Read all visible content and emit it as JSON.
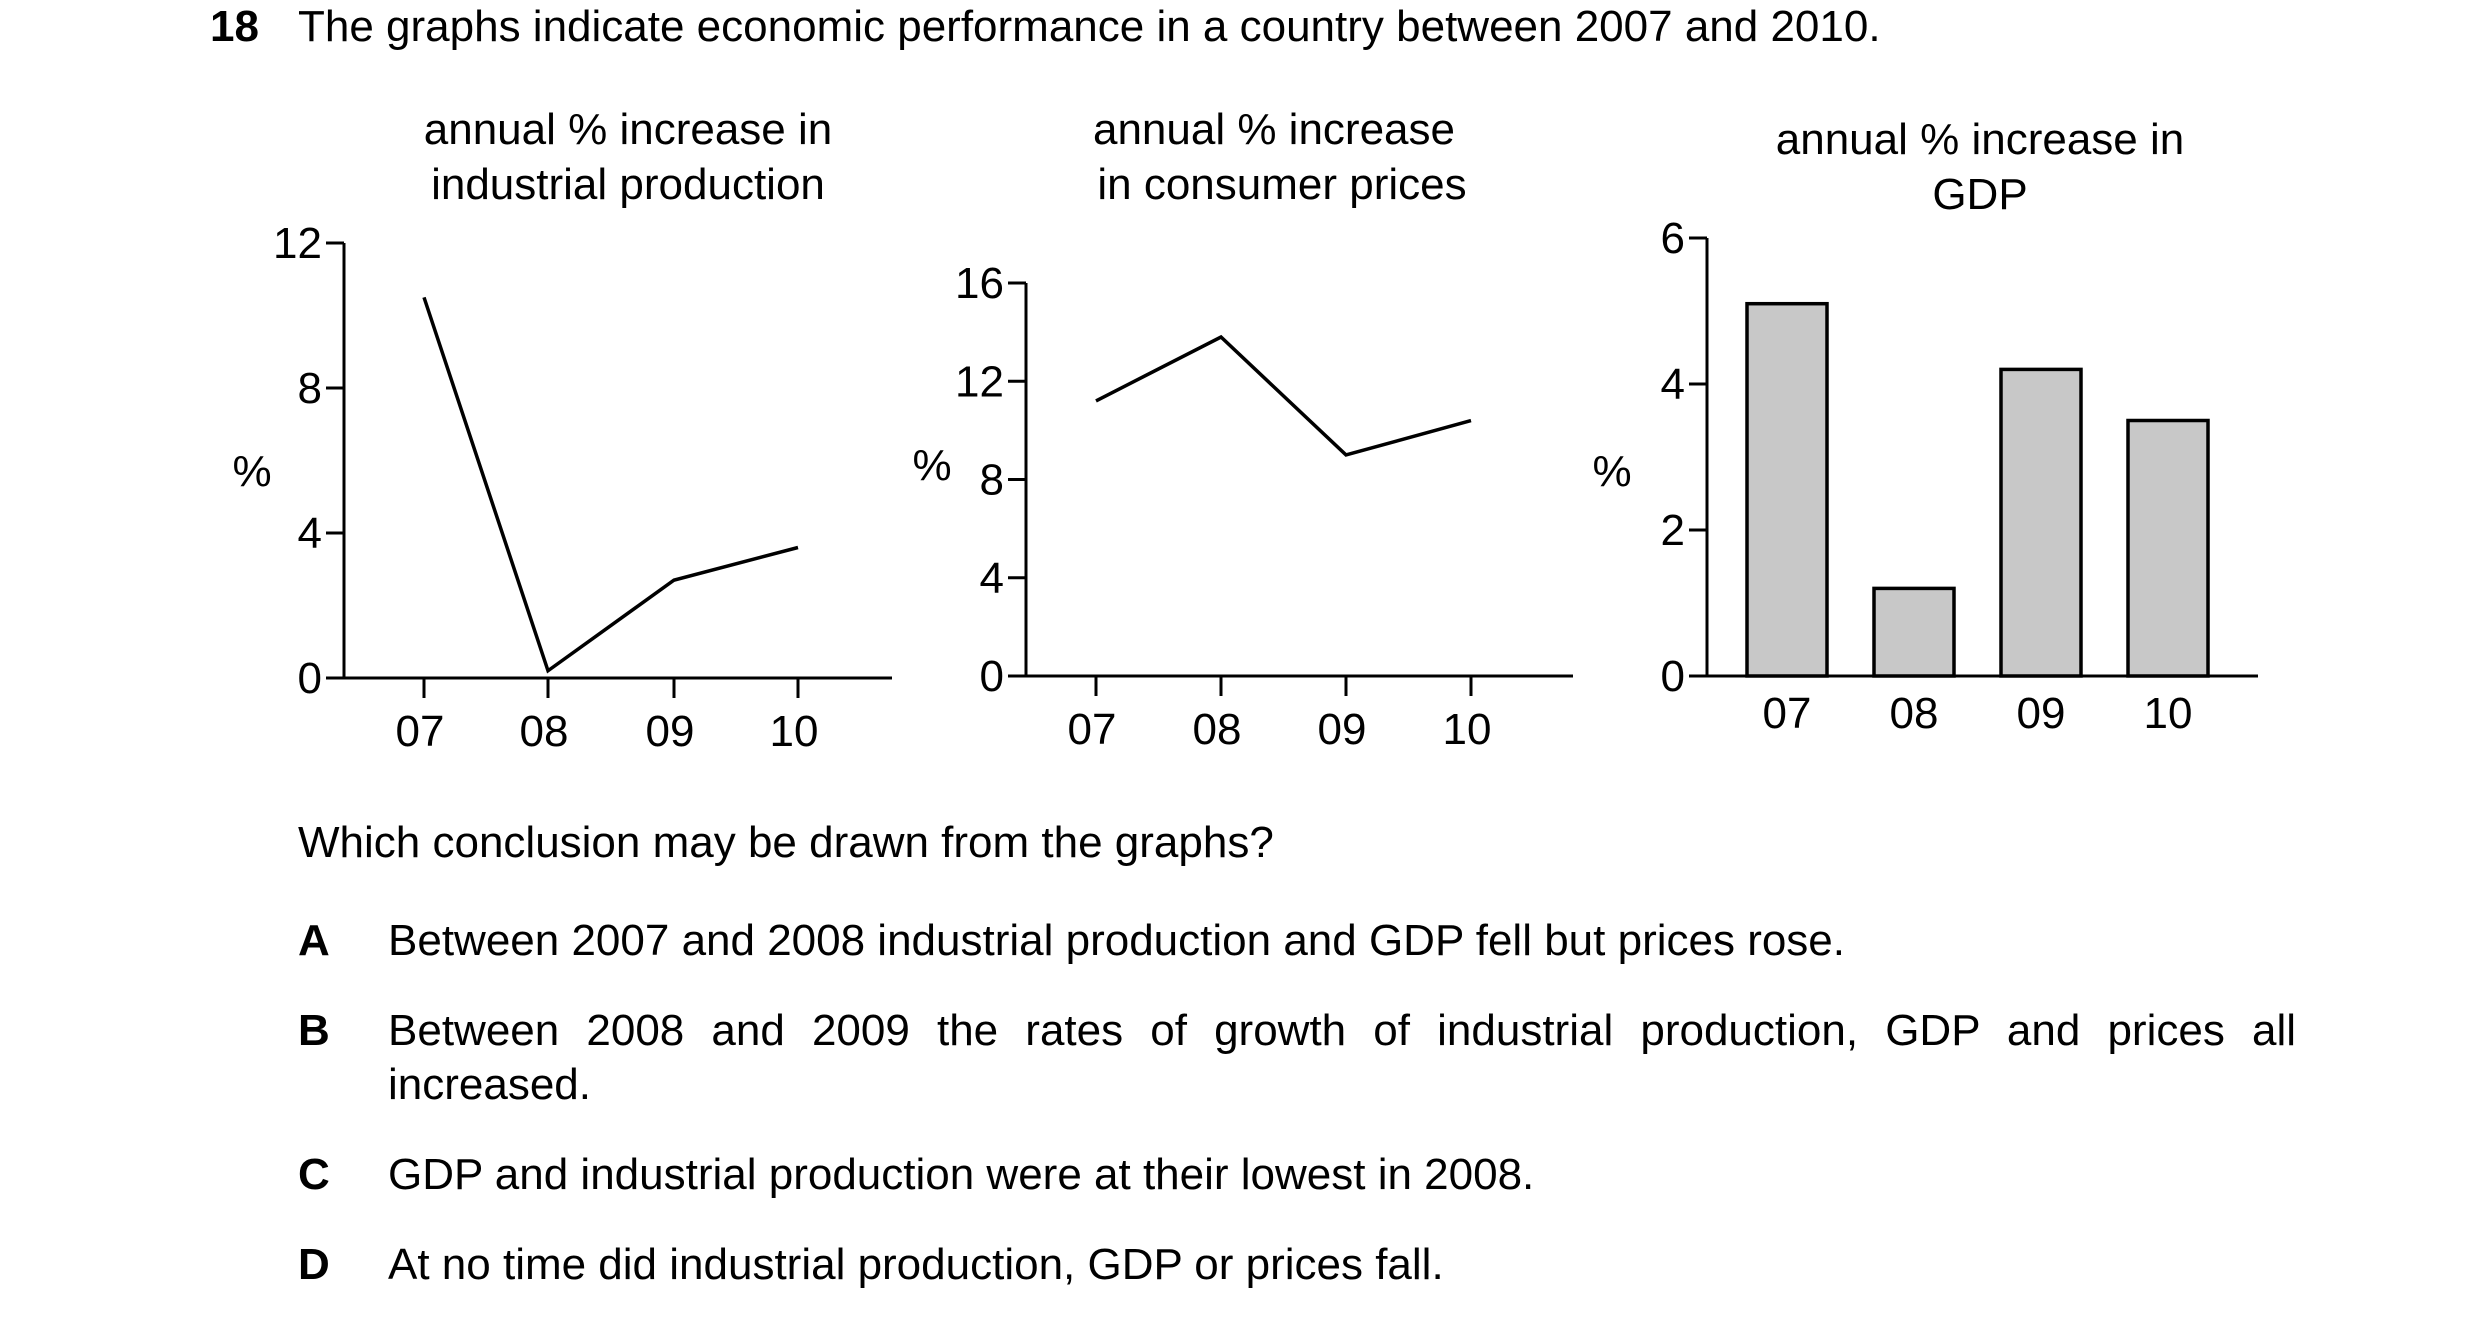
{
  "question": {
    "number": "18",
    "text": "The graphs indicate economic performance in a country between 2007 and 2010."
  },
  "chart_data": [
    {
      "type": "line",
      "title": [
        "annual % increase in",
        "industrial production"
      ],
      "ylabel": "%",
      "xlabel": "",
      "categories": [
        "07",
        "08",
        "09",
        "10"
      ],
      "values": [
        10.5,
        0.2,
        2.7,
        3.6
      ],
      "ylim": [
        0,
        12
      ],
      "yticks": [
        "0",
        "4",
        "8",
        "12"
      ],
      "grid": false
    },
    {
      "type": "line",
      "title": [
        "annual % increase",
        "in consumer prices"
      ],
      "ylabel": "%",
      "xlabel": "",
      "categories": [
        "07",
        "08",
        "09",
        "10"
      ],
      "values": [
        11.2,
        13.8,
        9.0,
        10.4
      ],
      "ylim": [
        0,
        16
      ],
      "yticks": [
        "0",
        "4",
        "8",
        "12",
        "16"
      ],
      "grid": false
    },
    {
      "type": "bar",
      "title": [
        "annual % increase in",
        "GDP"
      ],
      "ylabel": "%",
      "xlabel": "",
      "categories": [
        "07",
        "08",
        "09",
        "10"
      ],
      "values": [
        5.1,
        1.2,
        4.2,
        3.5
      ],
      "ylim": [
        0,
        6
      ],
      "yticks": [
        "0",
        "2",
        "4",
        "6"
      ],
      "bar_color": "#c8c8c8",
      "grid": false
    }
  ],
  "prompt": "Which conclusion may be drawn from the graphs?",
  "options": [
    {
      "letter": "A",
      "text": "Between 2007 and 2008 industrial production and GDP fell but prices rose."
    },
    {
      "letter": "B",
      "text": "Between 2008 and 2009 the rates of growth of industrial production, GDP and prices all increased."
    },
    {
      "letter": "C",
      "text": "GDP and industrial production were at their lowest in 2008."
    },
    {
      "letter": "D",
      "text": "At no time did industrial production, GDP or prices fall."
    }
  ]
}
